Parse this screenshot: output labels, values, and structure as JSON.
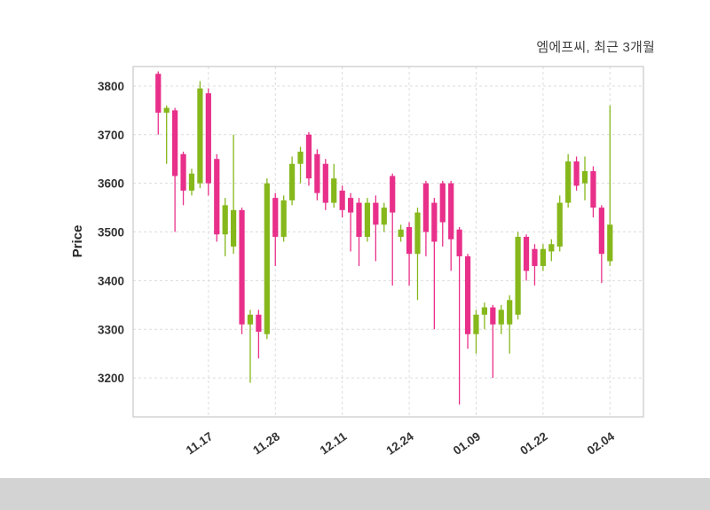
{
  "title": "엠에프씨, 최근 3개월",
  "chart_data": {
    "type": "candlestick",
    "title": "엠에프씨, 최근 3개월",
    "xlabel": "",
    "ylabel": "Price",
    "ylim": [
      3120,
      3840
    ],
    "yticks": [
      3200,
      3300,
      3400,
      3500,
      3600,
      3700,
      3800
    ],
    "xtick_labels": [
      "11.17",
      "11.28",
      "12.11",
      "12.24",
      "01.09",
      "01.22",
      "02.04"
    ],
    "xtick_indices": [
      6,
      14,
      22,
      30,
      38,
      46,
      54
    ],
    "grid": true,
    "grid_style": "dashed",
    "up_color": "#86b81c",
    "down_color": "#e8308a",
    "grid_color": "#dcdcdc",
    "border_color": "#c8c8c8",
    "tick_label_color": "#333333",
    "candles_format": "[open, high, low, close]",
    "candles": [
      [
        3825,
        3830,
        3700,
        3745
      ],
      [
        3745,
        3760,
        3640,
        3755
      ],
      [
        3750,
        3755,
        3500,
        3615
      ],
      [
        3660,
        3665,
        3555,
        3585
      ],
      [
        3585,
        3630,
        3575,
        3620
      ],
      [
        3600,
        3810,
        3590,
        3795
      ],
      [
        3785,
        3795,
        3575,
        3600
      ],
      [
        3650,
        3660,
        3480,
        3495
      ],
      [
        3495,
        3570,
        3450,
        3555
      ],
      [
        3470,
        3700,
        3455,
        3545
      ],
      [
        3545,
        3550,
        3290,
        3310
      ],
      [
        3310,
        3340,
        3190,
        3330
      ],
      [
        3330,
        3340,
        3240,
        3295
      ],
      [
        3290,
        3610,
        3280,
        3600
      ],
      [
        3570,
        3580,
        3430,
        3490
      ],
      [
        3490,
        3575,
        3480,
        3565
      ],
      [
        3565,
        3655,
        3555,
        3640
      ],
      [
        3640,
        3675,
        3600,
        3665
      ],
      [
        3700,
        3705,
        3595,
        3610
      ],
      [
        3660,
        3670,
        3565,
        3580
      ],
      [
        3640,
        3650,
        3545,
        3560
      ],
      [
        3560,
        3640,
        3550,
        3610
      ],
      [
        3585,
        3595,
        3530,
        3545
      ],
      [
        3570,
        3580,
        3460,
        3540
      ],
      [
        3560,
        3570,
        3430,
        3490
      ],
      [
        3490,
        3570,
        3480,
        3560
      ],
      [
        3560,
        3575,
        3440,
        3515
      ],
      [
        3515,
        3560,
        3500,
        3550
      ],
      [
        3615,
        3620,
        3390,
        3540
      ],
      [
        3490,
        3515,
        3480,
        3505
      ],
      [
        3510,
        3520,
        3390,
        3455
      ],
      [
        3455,
        3550,
        3360,
        3540
      ],
      [
        3600,
        3605,
        3450,
        3500
      ],
      [
        3560,
        3570,
        3300,
        3480
      ],
      [
        3600,
        3605,
        3470,
        3520
      ],
      [
        3600,
        3605,
        3420,
        3485
      ],
      [
        3505,
        3510,
        3145,
        3450
      ],
      [
        3450,
        3455,
        3260,
        3290
      ],
      [
        3290,
        3340,
        3250,
        3330
      ],
      [
        3330,
        3355,
        3300,
        3345
      ],
      [
        3345,
        3350,
        3200,
        3310
      ],
      [
        3310,
        3350,
        3290,
        3340
      ],
      [
        3310,
        3370,
        3250,
        3360
      ],
      [
        3330,
        3500,
        3320,
        3490
      ],
      [
        3490,
        3495,
        3400,
        3420
      ],
      [
        3465,
        3475,
        3390,
        3430
      ],
      [
        3430,
        3475,
        3420,
        3465
      ],
      [
        3460,
        3485,
        3440,
        3475
      ],
      [
        3470,
        3575,
        3460,
        3560
      ],
      [
        3560,
        3660,
        3550,
        3645
      ],
      [
        3645,
        3655,
        3585,
        3595
      ],
      [
        3600,
        3655,
        3565,
        3625
      ],
      [
        3625,
        3635,
        3530,
        3550
      ],
      [
        3550,
        3555,
        3395,
        3455
      ],
      [
        3440,
        3760,
        3430,
        3515
      ]
    ]
  }
}
